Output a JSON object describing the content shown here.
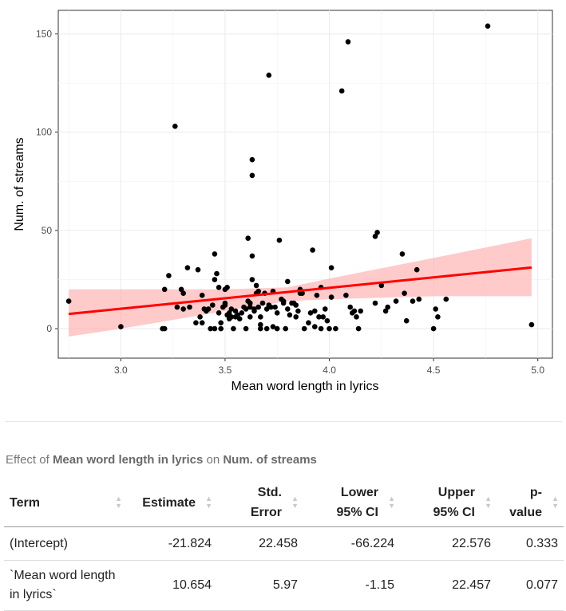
{
  "chart_data": {
    "type": "scatter",
    "xlabel": "Mean word length in lyrics",
    "ylabel": "Num. of streams",
    "xlim": [
      2.7,
      5.07
    ],
    "ylim": [
      -15,
      162
    ],
    "xticks": [
      3.0,
      3.5,
      4.0,
      4.5,
      5.0
    ],
    "xtick_labels": [
      "3.0",
      "3.5",
      "4.0",
      "4.5",
      "5.0"
    ],
    "yticks": [
      0,
      50,
      100,
      150
    ],
    "ytick_labels": [
      "0",
      "50",
      "100",
      "150"
    ],
    "grid": true,
    "point_color": "#000000",
    "fit": {
      "type": "linear",
      "intercept": -21.824,
      "slope": 10.654,
      "color": "#ff0000",
      "ci_color": "#ffb3b3"
    },
    "ci_band": {
      "x": [
        2.75,
        3.0,
        3.5,
        3.8,
        4.0,
        4.5,
        4.97
      ],
      "lower": [
        -4,
        0,
        9,
        14,
        15,
        16.5,
        16.5
      ],
      "upper": [
        20,
        20,
        20,
        21,
        25.5,
        36,
        46
      ]
    },
    "points": [
      [
        2.75,
        14
      ],
      [
        3.0,
        1
      ],
      [
        3.2,
        0
      ],
      [
        3.21,
        0
      ],
      [
        3.21,
        20
      ],
      [
        3.23,
        27
      ],
      [
        3.26,
        103
      ],
      [
        3.27,
        11
      ],
      [
        3.29,
        20
      ],
      [
        3.3,
        18
      ],
      [
        3.3,
        10
      ],
      [
        3.32,
        31
      ],
      [
        3.33,
        11
      ],
      [
        3.36,
        3
      ],
      [
        3.37,
        30
      ],
      [
        3.38,
        6
      ],
      [
        3.39,
        17
      ],
      [
        3.39,
        3
      ],
      [
        3.4,
        10
      ],
      [
        3.41,
        9
      ],
      [
        3.42,
        10
      ],
      [
        3.43,
        0
      ],
      [
        3.44,
        12
      ],
      [
        3.45,
        0
      ],
      [
        3.45,
        25
      ],
      [
        3.45,
        38
      ],
      [
        3.46,
        28
      ],
      [
        3.47,
        8
      ],
      [
        3.47,
        21
      ],
      [
        3.48,
        3
      ],
      [
        3.48,
        0
      ],
      [
        3.49,
        11
      ],
      [
        3.5,
        12
      ],
      [
        3.5,
        20
      ],
      [
        3.5,
        13
      ],
      [
        3.51,
        21
      ],
      [
        3.51,
        7
      ],
      [
        3.52,
        5
      ],
      [
        3.52,
        8
      ],
      [
        3.53,
        10
      ],
      [
        3.53,
        6
      ],
      [
        3.54,
        0
      ],
      [
        3.55,
        9
      ],
      [
        3.55,
        6
      ],
      [
        3.56,
        7
      ],
      [
        3.57,
        5
      ],
      [
        3.58,
        8
      ],
      [
        3.59,
        11
      ],
      [
        3.6,
        10
      ],
      [
        3.6,
        0
      ],
      [
        3.61,
        46
      ],
      [
        3.61,
        14
      ],
      [
        3.62,
        6
      ],
      [
        3.62,
        11
      ],
      [
        3.62,
        13
      ],
      [
        3.63,
        25
      ],
      [
        3.63,
        37
      ],
      [
        3.63,
        86
      ],
      [
        3.63,
        78
      ],
      [
        3.64,
        9
      ],
      [
        3.64,
        10
      ],
      [
        3.65,
        18
      ],
      [
        3.65,
        22
      ],
      [
        3.66,
        19
      ],
      [
        3.66,
        11
      ],
      [
        3.67,
        2
      ],
      [
        3.67,
        0
      ],
      [
        3.67,
        6
      ],
      [
        3.68,
        13
      ],
      [
        3.69,
        18
      ],
      [
        3.7,
        0
      ],
      [
        3.7,
        10
      ],
      [
        3.71,
        12
      ],
      [
        3.71,
        129
      ],
      [
        3.72,
        11
      ],
      [
        3.73,
        19
      ],
      [
        3.73,
        1
      ],
      [
        3.74,
        11
      ],
      [
        3.75,
        8
      ],
      [
        3.75,
        0
      ],
      [
        3.76,
        45
      ],
      [
        3.77,
        15
      ],
      [
        3.78,
        14
      ],
      [
        3.78,
        13
      ],
      [
        3.79,
        0
      ],
      [
        3.8,
        10
      ],
      [
        3.8,
        24
      ],
      [
        3.81,
        7
      ],
      [
        3.82,
        13
      ],
      [
        3.83,
        13
      ],
      [
        3.84,
        12
      ],
      [
        3.84,
        6
      ],
      [
        3.85,
        9
      ],
      [
        3.86,
        20
      ],
      [
        3.86,
        18
      ],
      [
        3.87,
        18
      ],
      [
        3.88,
        0
      ],
      [
        3.9,
        3
      ],
      [
        3.91,
        8
      ],
      [
        3.92,
        40
      ],
      [
        3.93,
        1
      ],
      [
        3.93,
        9
      ],
      [
        3.94,
        17
      ],
      [
        3.95,
        6
      ],
      [
        3.96,
        21
      ],
      [
        3.96,
        0
      ],
      [
        3.97,
        6
      ],
      [
        3.98,
        10
      ],
      [
        3.99,
        4
      ],
      [
        4.0,
        0
      ],
      [
        4.01,
        31
      ],
      [
        4.01,
        16
      ],
      [
        4.03,
        0
      ],
      [
        4.06,
        121
      ],
      [
        4.08,
        17
      ],
      [
        4.09,
        146
      ],
      [
        4.1,
        11
      ],
      [
        4.11,
        8
      ],
      [
        4.12,
        9
      ],
      [
        4.13,
        6
      ],
      [
        4.14,
        0
      ],
      [
        4.15,
        9
      ],
      [
        4.22,
        13
      ],
      [
        4.22,
        47
      ],
      [
        4.23,
        49
      ],
      [
        4.25,
        22
      ],
      [
        4.27,
        9
      ],
      [
        4.28,
        11
      ],
      [
        4.32,
        14
      ],
      [
        4.35,
        38
      ],
      [
        4.36,
        18
      ],
      [
        4.37,
        4
      ],
      [
        4.4,
        14
      ],
      [
        4.42,
        30
      ],
      [
        4.43,
        15
      ],
      [
        4.5,
        0
      ],
      [
        4.51,
        10
      ],
      [
        4.52,
        6
      ],
      [
        4.56,
        15
      ],
      [
        4.76,
        154
      ],
      [
        4.97,
        2
      ]
    ]
  },
  "table": {
    "caption_prefix": "Effect of",
    "caption_x": "Mean word length in lyrics",
    "caption_mid": "on",
    "caption_y": "Num. of streams",
    "headers": [
      "Term",
      "Estimate",
      "Std.\nError",
      "Lower\n95% CI",
      "Upper\n95% CI",
      "p-\nvalue"
    ],
    "rows": [
      [
        "(Intercept)",
        "-21.824",
        "22.458",
        "-66.224",
        "22.576",
        "0.333"
      ],
      [
        "`Mean word length\nin lyrics`",
        "10.654",
        "5.97",
        "-1.15",
        "22.457",
        "0.077"
      ]
    ]
  }
}
